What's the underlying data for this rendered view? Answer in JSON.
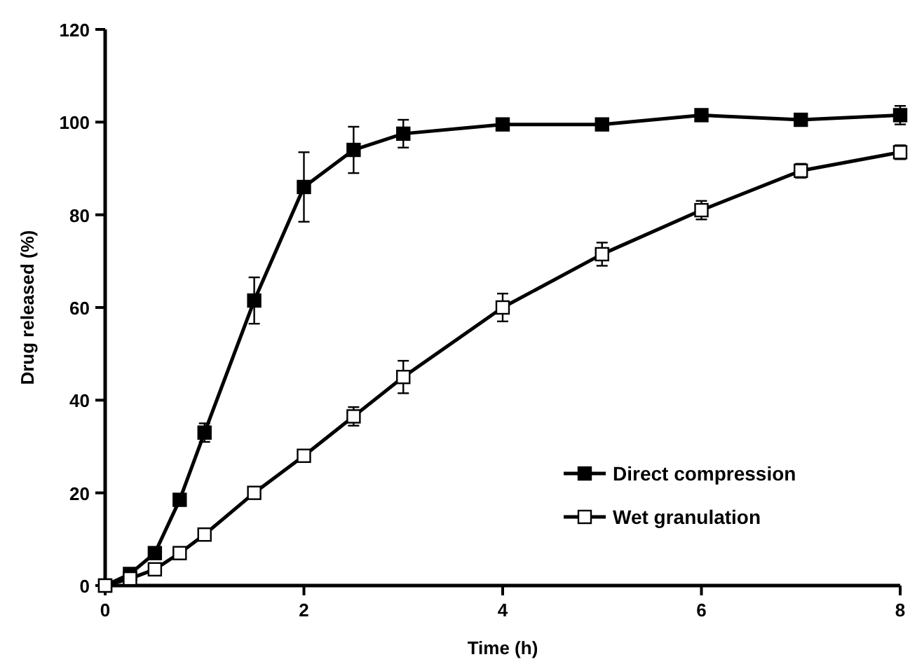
{
  "chart_data": {
    "type": "line",
    "xlabel": "Time (h)",
    "ylabel": "Drug released (%)",
    "x": [
      0,
      0.25,
      0.5,
      0.75,
      1,
      1.5,
      2,
      2.5,
      3,
      4,
      5,
      6,
      7,
      8
    ],
    "xlim": [
      0,
      8
    ],
    "xticks": [
      0,
      2,
      4,
      6,
      8
    ],
    "ylim": [
      0,
      120
    ],
    "yticks": [
      0,
      20,
      40,
      60,
      80,
      100,
      120
    ],
    "marker": "square",
    "legend": "bottom right",
    "grid": false,
    "series": [
      {
        "name": "Direct compression",
        "color": "#000000",
        "values": [
          0,
          2.5,
          7,
          18.5,
          33,
          61.5,
          86,
          94,
          97.5,
          99.5,
          99.5,
          101.5,
          100.5,
          101.5
        ],
        "errors": [
          null,
          null,
          null,
          1,
          2,
          5,
          7.5,
          5,
          3,
          1,
          null,
          1,
          null,
          2
        ]
      },
      {
        "name": "Wet granulation",
        "color": "#000000",
        "values": [
          0,
          1.5,
          3.5,
          7,
          11,
          20,
          28,
          36.5,
          45,
          60,
          71.5,
          81,
          89.5,
          93.5
        ],
        "errors": [
          null,
          null,
          null,
          null,
          null,
          null,
          null,
          2,
          3.5,
          3,
          2.5,
          2,
          1.5,
          1.5
        ]
      }
    ]
  }
}
